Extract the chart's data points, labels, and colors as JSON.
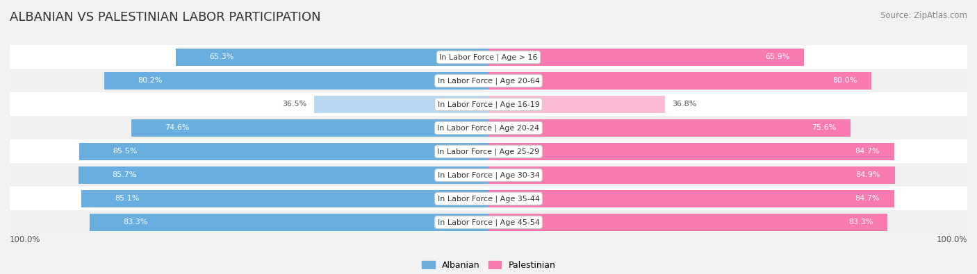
{
  "title": "ALBANIAN VS PALESTINIAN LABOR PARTICIPATION",
  "source": "Source: ZipAtlas.com",
  "categories": [
    "In Labor Force | Age > 16",
    "In Labor Force | Age 20-64",
    "In Labor Force | Age 16-19",
    "In Labor Force | Age 20-24",
    "In Labor Force | Age 25-29",
    "In Labor Force | Age 30-34",
    "In Labor Force | Age 35-44",
    "In Labor Force | Age 45-54"
  ],
  "albanian_values": [
    65.3,
    80.2,
    36.5,
    74.6,
    85.5,
    85.7,
    85.1,
    83.3
  ],
  "palestinian_values": [
    65.9,
    80.0,
    36.8,
    75.6,
    84.7,
    84.9,
    84.7,
    83.3
  ],
  "albanian_labels": [
    "65.3%",
    "80.2%",
    "36.5%",
    "74.6%",
    "85.5%",
    "85.7%",
    "85.1%",
    "83.3%"
  ],
  "palestinian_labels": [
    "65.9%",
    "80.0%",
    "36.8%",
    "75.6%",
    "84.7%",
    "84.9%",
    "84.7%",
    "83.3%"
  ],
  "albanian_color": "#6aaee0",
  "albanian_color_light": "#b8d8f0",
  "palestinian_color": "#f87ab0",
  "palestinian_color_light": "#f9bcd4",
  "row_color_odd": "#f5f5f5",
  "row_color_even": "#ebebeb",
  "bg_color": "#f2f2f2",
  "max_value": 100.0,
  "legend_albanian": "Albanian",
  "legend_palestinian": "Palestinian"
}
